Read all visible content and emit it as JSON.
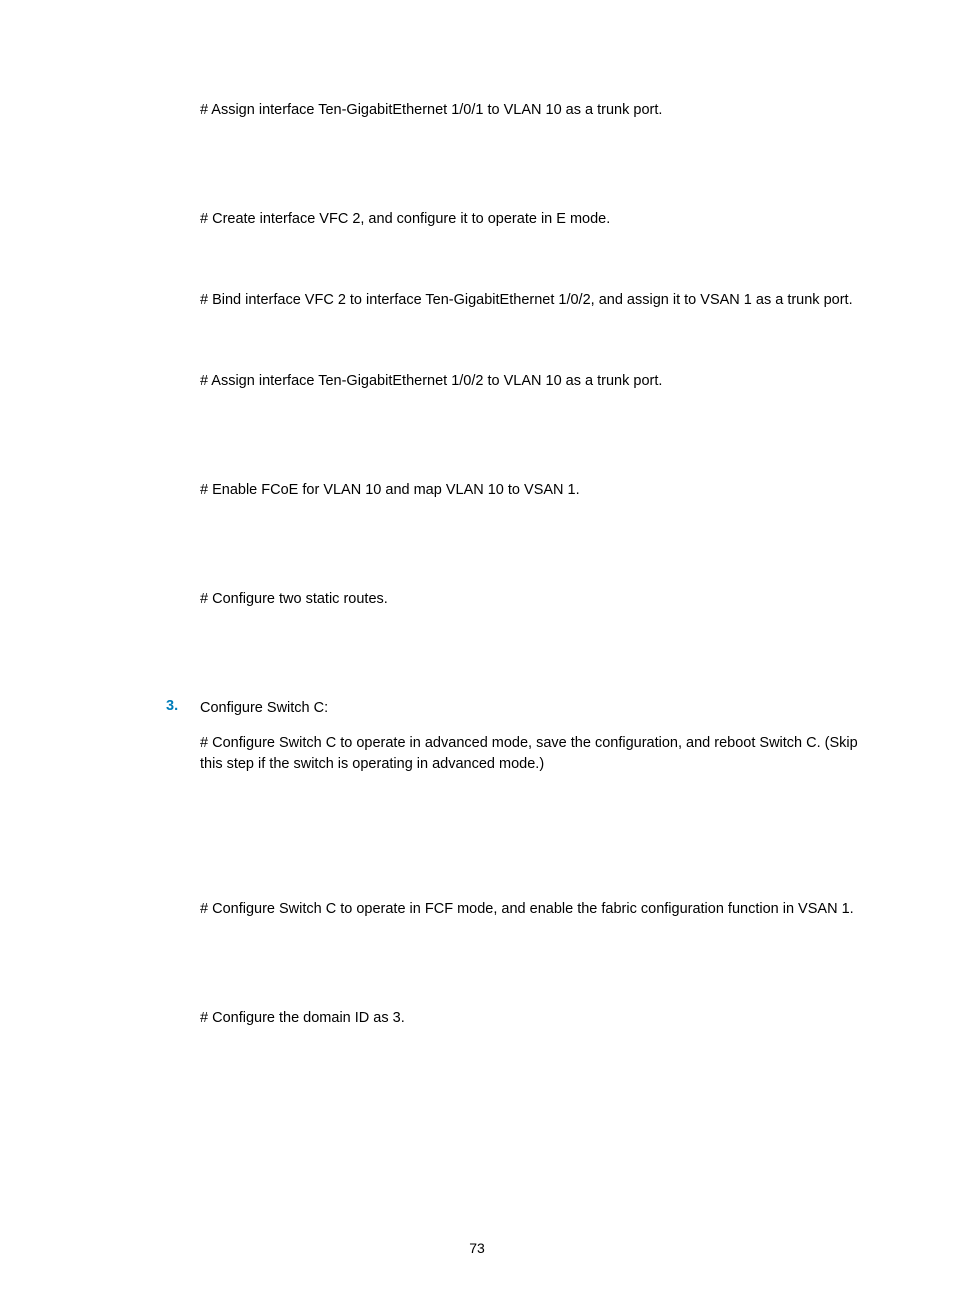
{
  "content": {
    "p1": "# Assign interface Ten-GigabitEthernet 1/0/1 to VLAN 10 as a trunk port.",
    "p2": "# Create interface VFC 2, and configure it to operate in E mode.",
    "p3": "# Bind interface VFC 2 to interface Ten-GigabitEthernet 1/0/2, and assign it to VSAN 1 as a trunk port.",
    "p4": "# Assign interface Ten-GigabitEthernet 1/0/2 to VLAN 10 as a trunk port.",
    "p5": "# Enable FCoE for VLAN 10 and map VLAN 10 to VSAN 1.",
    "p6": "# Configure two static routes.",
    "listNum": "3.",
    "p7": "Configure Switch C:",
    "p8": "# Configure Switch C to operate in advanced mode, save the configuration, and reboot Switch C. (Skip this step if the switch is operating in advanced mode.)",
    "p9": "# Configure Switch C to operate in FCF mode, and enable the fabric configuration function in VSAN 1.",
    "p10": "# Configure the domain ID as 3."
  },
  "pageNumber": "73",
  "colors": {
    "listNumber": "#007dba",
    "text": "#000000",
    "background": "#ffffff"
  },
  "typography": {
    "body_fontsize": 14.5,
    "body_family": "Arial, Helvetica, sans-serif",
    "listnum_weight": "bold"
  }
}
